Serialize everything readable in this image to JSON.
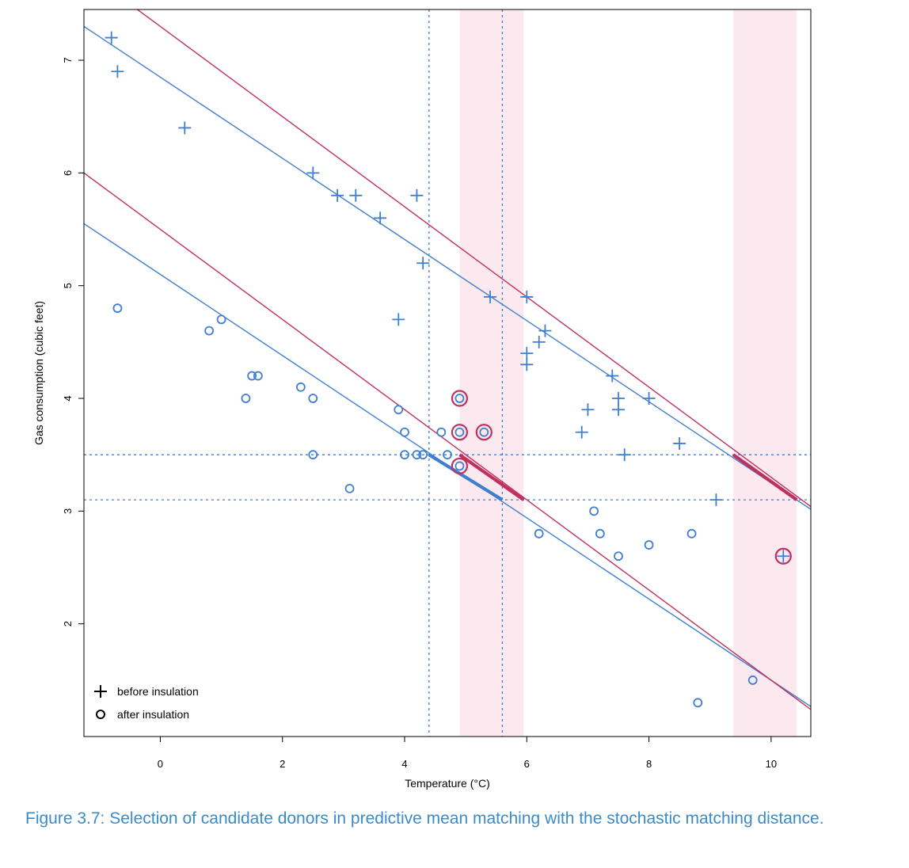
{
  "caption": "Figure 3.7: Selection of candidate donors in predictive mean matching with the stochastic matching distance.",
  "colors": {
    "blue": "#3f7fcf",
    "red": "#c0315e",
    "band": "#fbe9ef",
    "axis": "#000000"
  },
  "chart_data": {
    "type": "scatter",
    "xlabel": "Temperature (°C)",
    "ylabel": "Gas consumption (cubic feet)",
    "xlim": [
      -1.25,
      10.65
    ],
    "ylim": [
      1.0,
      7.45
    ],
    "xticks": [
      0,
      2,
      4,
      6,
      8,
      10
    ],
    "yticks": [
      2,
      3,
      4,
      5,
      6,
      7
    ],
    "legend": {
      "position": "bottom-left",
      "entries": [
        {
          "symbol": "plus",
          "label": "before insulation"
        },
        {
          "symbol": "circle",
          "label": "after insulation"
        }
      ]
    },
    "series": [
      {
        "name": "before insulation",
        "marker": "plus",
        "points": [
          [
            -0.8,
            7.2
          ],
          [
            -0.7,
            6.9
          ],
          [
            0.4,
            6.4
          ],
          [
            2.5,
            6.0
          ],
          [
            2.9,
            5.8
          ],
          [
            3.2,
            5.8
          ],
          [
            3.6,
            5.6
          ],
          [
            3.9,
            4.7
          ],
          [
            4.2,
            5.8
          ],
          [
            4.3,
            5.2
          ],
          [
            5.4,
            4.9
          ],
          [
            6.0,
            4.9
          ],
          [
            6.0,
            4.4
          ],
          [
            6.0,
            4.3
          ],
          [
            6.2,
            4.5
          ],
          [
            6.3,
            4.6
          ],
          [
            6.9,
            3.7
          ],
          [
            7.0,
            3.9
          ],
          [
            7.4,
            4.2
          ],
          [
            7.5,
            4.0
          ],
          [
            7.5,
            3.9
          ],
          [
            7.6,
            3.5
          ],
          [
            8.0,
            4.0
          ],
          [
            8.5,
            3.6
          ],
          [
            9.1,
            3.1
          ],
          [
            10.2,
            2.6
          ]
        ]
      },
      {
        "name": "after insulation",
        "marker": "circle",
        "points": [
          [
            -0.7,
            4.8
          ],
          [
            0.8,
            4.6
          ],
          [
            1.0,
            4.7
          ],
          [
            1.4,
            4.0
          ],
          [
            1.5,
            4.2
          ],
          [
            1.6,
            4.2
          ],
          [
            2.3,
            4.1
          ],
          [
            2.5,
            4.0
          ],
          [
            2.5,
            3.5
          ],
          [
            3.1,
            3.2
          ],
          [
            3.9,
            3.9
          ],
          [
            4.0,
            3.7
          ],
          [
            4.0,
            3.5
          ],
          [
            4.2,
            3.5
          ],
          [
            4.3,
            3.5
          ],
          [
            4.6,
            3.7
          ],
          [
            4.7,
            3.5
          ],
          [
            4.9,
            4.0
          ],
          [
            4.9,
            3.7
          ],
          [
            4.9,
            3.4
          ],
          [
            5.3,
            3.7
          ],
          [
            6.2,
            2.8
          ],
          [
            7.1,
            3.0
          ],
          [
            7.2,
            2.8
          ],
          [
            7.5,
            2.6
          ],
          [
            8.0,
            2.7
          ],
          [
            8.7,
            2.8
          ],
          [
            8.8,
            1.3
          ],
          [
            9.7,
            1.5
          ]
        ]
      }
    ],
    "lines": [
      {
        "color": "blue",
        "intercept": 6.85,
        "slope": -0.36
      },
      {
        "color": "red",
        "intercept": 7.3,
        "slope": -0.4
      },
      {
        "color": "blue",
        "intercept": 5.1,
        "slope": -0.36
      },
      {
        "color": "red",
        "intercept": 5.5,
        "slope": -0.4
      }
    ],
    "thick_segments": [
      {
        "color": "blue",
        "x": [
          4.4,
          5.6
        ],
        "y": [
          3.5,
          3.1
        ]
      },
      {
        "color": "red",
        "x": [
          4.9,
          5.95
        ],
        "y": [
          3.5,
          3.1
        ]
      },
      {
        "color": "red",
        "x": [
          9.38,
          10.42
        ],
        "y": [
          3.5,
          3.1
        ]
      }
    ],
    "reference_lines": {
      "vertical": [
        4.4,
        5.6
      ],
      "horizontal": [
        3.5,
        3.1
      ]
    },
    "bands": [
      {
        "x": [
          4.9,
          5.95
        ]
      },
      {
        "x": [
          9.38,
          10.42
        ]
      }
    ],
    "highlighted_points": [
      [
        4.9,
        4.0
      ],
      [
        4.9,
        3.7
      ],
      [
        4.9,
        3.4
      ],
      [
        5.3,
        3.7
      ],
      [
        10.2,
        2.6
      ]
    ]
  }
}
